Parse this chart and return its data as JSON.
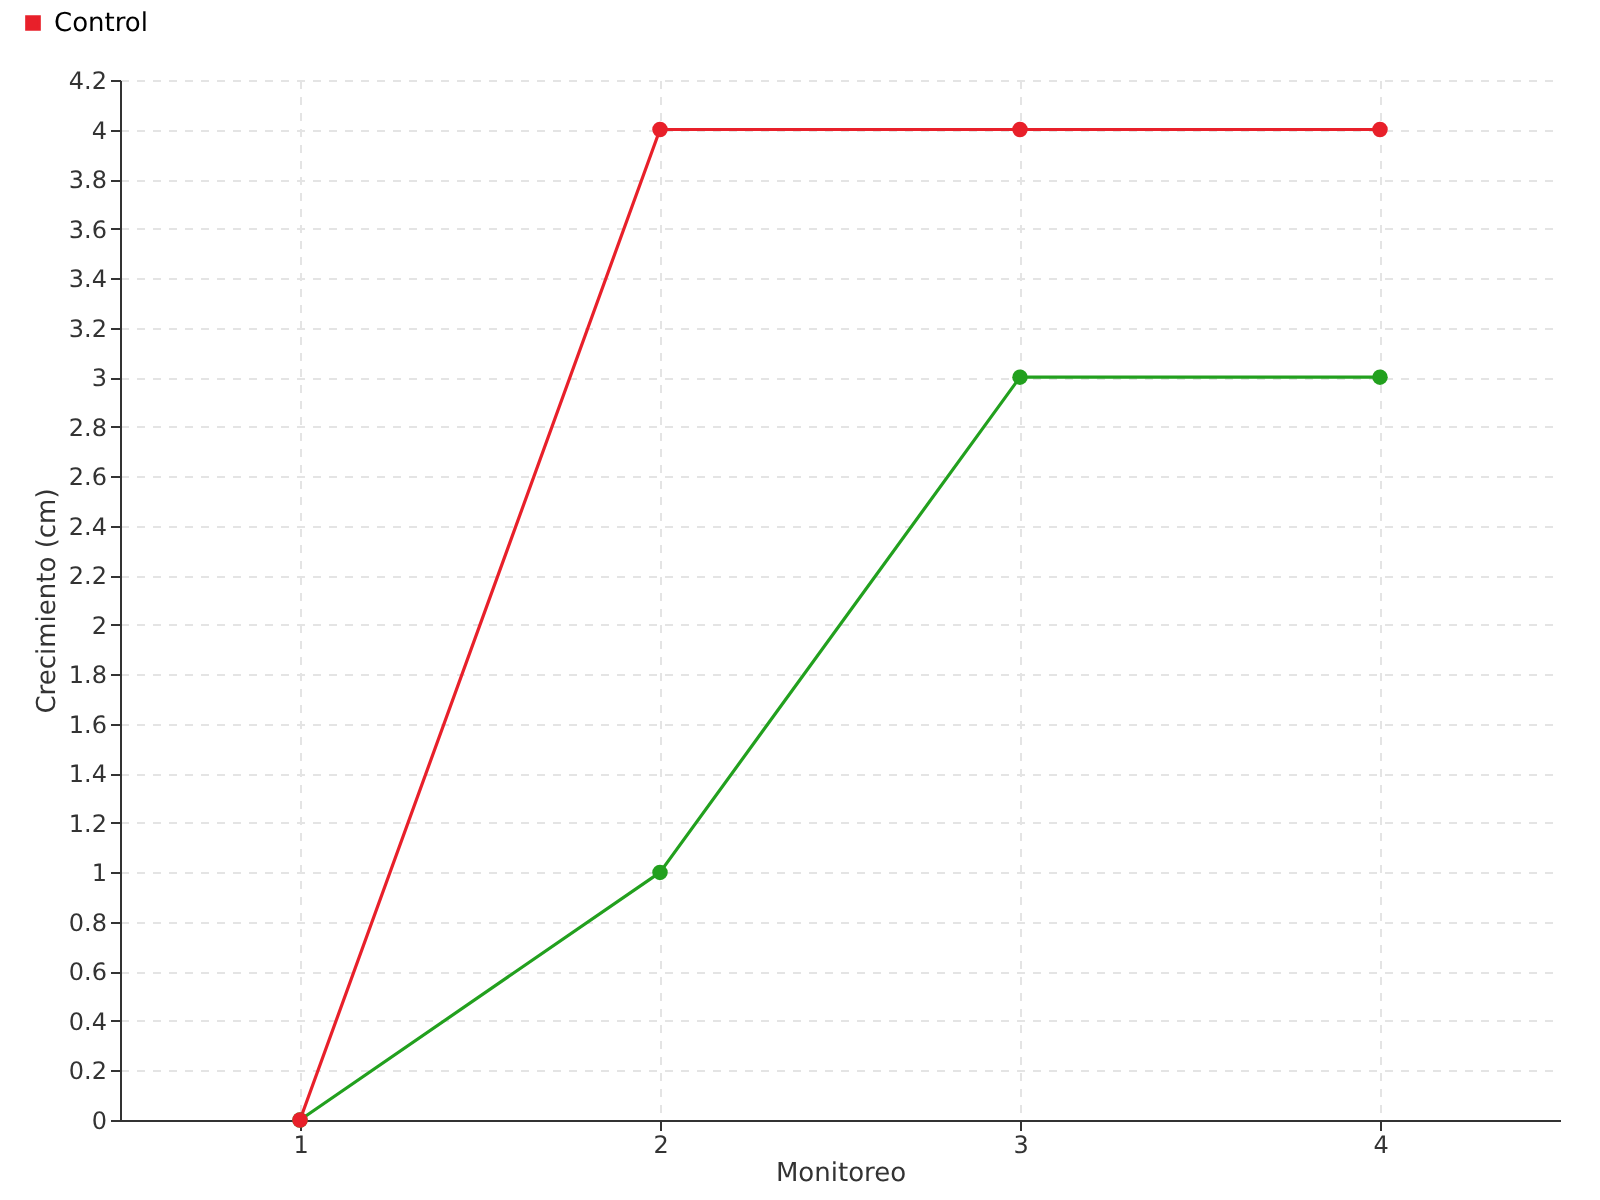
{
  "chart_data": {
    "type": "line",
    "xlabel": "Monitoreo",
    "ylabel": "Crecimiento (cm)",
    "x": [
      1,
      2,
      3,
      4
    ],
    "series": [
      {
        "color": "#22a01e",
        "values": [
          0,
          1,
          3,
          3
        ]
      },
      {
        "name": "Control",
        "color": "#e8202a",
        "values": [
          0,
          4,
          4,
          4
        ]
      }
    ],
    "xlim": [
      0.5,
      4.5
    ],
    "xticks": [
      1,
      2,
      3,
      4
    ],
    "ylim": [
      0,
      4.2
    ],
    "yticks": [
      0,
      0.2,
      0.4,
      0.6,
      0.8,
      1,
      1.2,
      1.4,
      1.6,
      1.8,
      2,
      2.2,
      2.4,
      2.6,
      2.8,
      3,
      3.2,
      3.4,
      3.6,
      3.8,
      4,
      4.2
    ],
    "grid": true,
    "legend": "top left",
    "marker": "circle",
    "line_style": "solid"
  }
}
